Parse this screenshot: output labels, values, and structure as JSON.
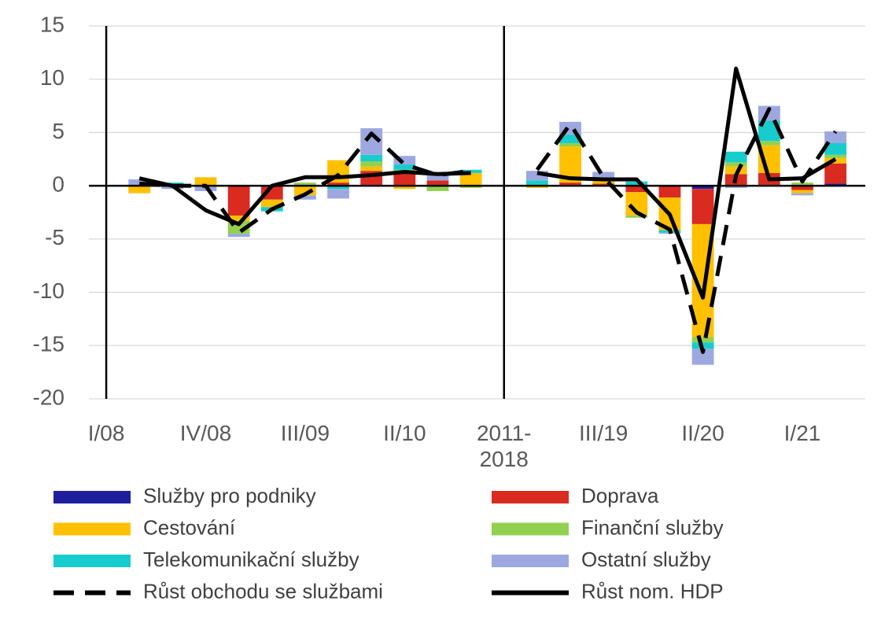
{
  "chart_data": {
    "type": "bar",
    "categories": [
      "I/08",
      null,
      null,
      "IV/08",
      null,
      null,
      "III/09",
      null,
      null,
      "II/10",
      null,
      null,
      "2011-2018",
      null,
      null,
      "III/19",
      null,
      null,
      "II/20",
      null,
      null,
      "I/21",
      null
    ],
    "ylim": [
      -20,
      15
    ],
    "yticks": [
      -20,
      -15,
      -10,
      -5,
      0,
      5,
      10,
      15
    ],
    "grid": true,
    "series": [
      {
        "name": "Služby pro podniky",
        "type": "bar",
        "color": "#1f1f9e",
        "values": [
          null,
          0,
          0,
          0,
          0,
          0,
          0,
          0,
          0,
          0,
          0,
          0,
          null,
          0,
          0,
          0,
          0,
          0,
          -0.3,
          0,
          0,
          0,
          0.2
        ]
      },
      {
        "name": "Doprava",
        "type": "bar",
        "color": "#d92b20",
        "values": [
          null,
          0,
          0,
          0,
          -2.8,
          -1.3,
          0,
          0.3,
          1.4,
          1.2,
          0.5,
          0,
          null,
          0,
          0.3,
          0.2,
          -0.6,
          -1.1,
          -3.3,
          1.1,
          1.2,
          -0.4,
          1.9
        ]
      },
      {
        "name": "Cestování",
        "type": "bar",
        "color": "#ffc000",
        "values": [
          null,
          -0.7,
          0,
          0.8,
          -0.5,
          -0.7,
          -0.9,
          2.1,
          0.4,
          -0.3,
          0,
          1.2,
          null,
          -0.2,
          3.4,
          0.3,
          -2.2,
          -3.0,
          -10.6,
          0.7,
          2.6,
          -0.3,
          0.5
        ]
      },
      {
        "name": "Finanční služby",
        "type": "bar",
        "color": "#92d050",
        "values": [
          null,
          0,
          0.2,
          0,
          -1.2,
          0,
          0.3,
          0,
          0.5,
          0.3,
          -0.5,
          -0.2,
          null,
          0,
          0.3,
          0,
          -0.2,
          -0.1,
          -0.5,
          0.4,
          0.4,
          0.3,
          0.3
        ]
      },
      {
        "name": "Telekomunikační služby",
        "type": "bar",
        "color": "#17cccc",
        "values": [
          null,
          0,
          0.1,
          0,
          0,
          -0.4,
          0,
          -0.3,
          0.6,
          0.5,
          0,
          0.3,
          null,
          0.5,
          0.8,
          0,
          0.4,
          -0.2,
          -0.6,
          1.0,
          1.9,
          0,
          1.1
        ]
      },
      {
        "name": "Ostatní služby",
        "type": "bar",
        "color": "#9da8e0",
        "values": [
          null,
          0.6,
          -0.3,
          -0.5,
          -0.3,
          0,
          -0.4,
          -0.9,
          2.5,
          0.8,
          0.5,
          0,
          null,
          0.9,
          1.2,
          0.8,
          0,
          -0.1,
          -1.5,
          -0.2,
          1.4,
          -0.2,
          1.1
        ]
      },
      {
        "name": "Růst obchodu se službami",
        "type": "line",
        "dashed": true,
        "color": "#000000",
        "values": [
          null,
          0.2,
          0,
          0,
          -4.4,
          -2.2,
          -0.8,
          1.0,
          4.9,
          2.0,
          1.0,
          1.4,
          null,
          1.5,
          5.8,
          0.8,
          -2.5,
          -4.1,
          -15.6,
          1.0,
          7.2,
          0.4,
          5.1
        ]
      },
      {
        "name": "Růst nom. HDP",
        "type": "line",
        "dashed": false,
        "color": "#000000",
        "values": [
          null,
          0.7,
          0,
          -2.3,
          -3.6,
          0,
          0.8,
          0.8,
          1.0,
          1.3,
          1.1,
          1.2,
          null,
          1.2,
          0.7,
          0.6,
          0.6,
          -2.7,
          -10.5,
          11.0,
          0.6,
          0.7,
          2.5
        ]
      }
    ]
  }
}
